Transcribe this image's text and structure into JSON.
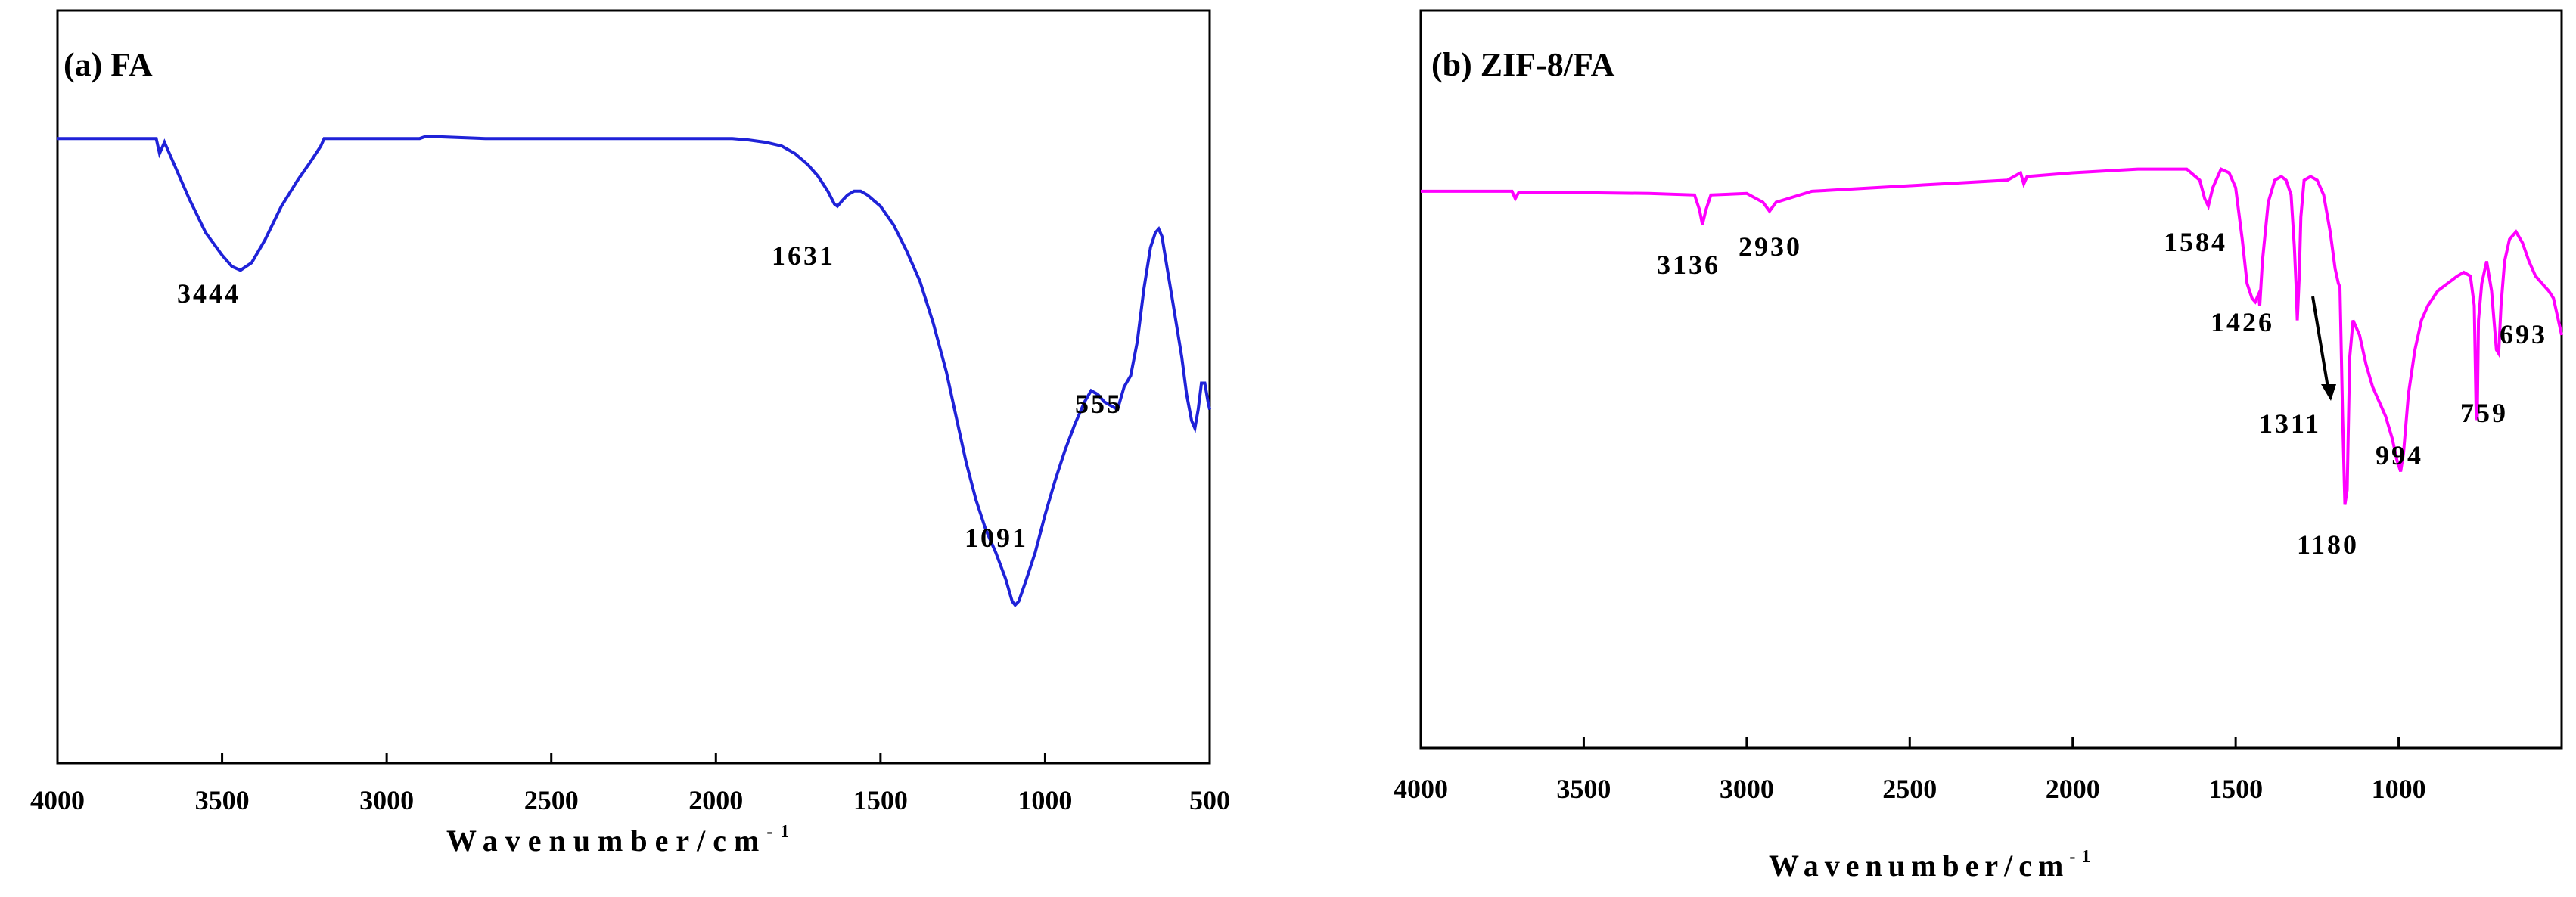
{
  "chart_data": [
    {
      "type": "line",
      "title": "(a) FA",
      "xlabel": "Wavenumber/cm",
      "xlabel_sup": "-1",
      "xlim": [
        4000,
        500
      ],
      "ylim": [
        0,
        100
      ],
      "xticks": [
        4000,
        3500,
        3000,
        2500,
        2000,
        1500,
        1000,
        500
      ],
      "grid": false,
      "color": "#1f22d8",
      "series": [
        {
          "x": [
            4000,
            3720,
            3700,
            3690,
            3675,
            3650,
            3600,
            3550,
            3500,
            3470,
            3444,
            3410,
            3370,
            3320,
            3270,
            3230,
            3200,
            3190,
            3100,
            2900,
            2880,
            2700,
            2500,
            2300,
            2100,
            1950,
            1900,
            1850,
            1800,
            1760,
            1720,
            1690,
            1660,
            1640,
            1631,
            1615,
            1600,
            1580,
            1560,
            1540,
            1500,
            1460,
            1420,
            1380,
            1340,
            1300,
            1270,
            1240,
            1210,
            1180,
            1150,
            1120,
            1100,
            1091,
            1080,
            1060,
            1030,
            1000,
            970,
            940,
            910,
            880,
            860,
            840,
            820,
            800,
            780,
            760,
            740,
            720,
            700,
            680,
            665,
            655,
            645,
            630,
            615,
            600,
            585,
            570,
            555,
            545,
            535,
            525,
            515,
            505,
            500
          ],
          "y": [
            83,
            83,
            83,
            81,
            82.5,
            80,
            75,
            70.5,
            67.5,
            66,
            65.5,
            66.5,
            69.5,
            74,
            77.5,
            80,
            82,
            83,
            83,
            83,
            83.3,
            83,
            83,
            83,
            83,
            83,
            82.8,
            82.5,
            82,
            81,
            79.5,
            78,
            76,
            74.3,
            74,
            74.8,
            75.5,
            76,
            76,
            75.5,
            74,
            71.5,
            68,
            64,
            58.5,
            52,
            46,
            40,
            35,
            31,
            28,
            24.5,
            21.5,
            21,
            21.5,
            24,
            28,
            33,
            37.5,
            41.5,
            45,
            48,
            49.5,
            49,
            48,
            47.5,
            47,
            50,
            51.5,
            56,
            63,
            68.5,
            70.5,
            71,
            70,
            66,
            62,
            58,
            54,
            49,
            45.5,
            44.5,
            47,
            50.5,
            50.5,
            48,
            47
          ]
        }
      ],
      "annotations": [
        {
          "text": "3444",
          "x": 3444
        },
        {
          "text": "1631",
          "x": 1631
        },
        {
          "text": "1091",
          "x": 1091
        },
        {
          "text": "555",
          "x": 555
        }
      ]
    },
    {
      "type": "line",
      "title": "(b) ZIF-8/FA",
      "xlabel": "Wavenumber/cm",
      "xlabel_sup": "-1",
      "xlim": [
        4000,
        500
      ],
      "ylim": [
        0,
        100
      ],
      "xticks": [
        4000,
        3500,
        3000,
        2500,
        2000,
        1500,
        1000
      ],
      "grid": false,
      "color": "#ff00ff",
      "series": [
        {
          "x": [
            4000,
            3850,
            3720,
            3710,
            3700,
            3500,
            3300,
            3160,
            3145,
            3136,
            3125,
            3110,
            3000,
            2950,
            2930,
            2910,
            2800,
            2600,
            2400,
            2200,
            2160,
            2150,
            2140,
            2000,
            1800,
            1700,
            1650,
            1610,
            1595,
            1584,
            1570,
            1545,
            1520,
            1500,
            1480,
            1465,
            1450,
            1440,
            1430,
            1426,
            1418,
            1400,
            1380,
            1360,
            1345,
            1330,
            1320,
            1315,
            1311,
            1305,
            1300,
            1290,
            1270,
            1250,
            1230,
            1210,
            1195,
            1185,
            1180,
            1172,
            1165,
            1158,
            1150,
            1140,
            1120,
            1100,
            1080,
            1060,
            1040,
            1020,
            1005,
            994,
            985,
            970,
            950,
            930,
            910,
            880,
            850,
            820,
            800,
            780,
            768,
            762,
            759,
            755,
            745,
            730,
            715,
            700,
            693,
            686,
            675,
            660,
            640,
            620,
            600,
            580,
            560,
            540,
            525,
            510,
            500
          ],
          "y": [
            75.5,
            75.5,
            75.5,
            74.5,
            75.3,
            75.3,
            75.2,
            75,
            73,
            71,
            73,
            75,
            75.2,
            74,
            72.8,
            74,
            75.5,
            76,
            76.5,
            77,
            78,
            76.5,
            77.5,
            78,
            78.5,
            78.5,
            78.5,
            77,
            74.5,
            73.5,
            76,
            78.5,
            78,
            76,
            69,
            63,
            61,
            60.5,
            61.5,
            60,
            66,
            74,
            77,
            77.5,
            77,
            75,
            68,
            63,
            58,
            64,
            72,
            77,
            77.5,
            77,
            75,
            70,
            65,
            63,
            62.5,
            45,
            33,
            35,
            53,
            58,
            56,
            52,
            49,
            47,
            45,
            42,
            39,
            37.5,
            40,
            48,
            54,
            58,
            60,
            62,
            63,
            64,
            64.5,
            64,
            60,
            45,
            44.5,
            58,
            63,
            66,
            62,
            54,
            53.5,
            60,
            66,
            69,
            70,
            68.5,
            66,
            64,
            63,
            62,
            61,
            58,
            56
          ]
        }
      ],
      "annotations": [
        {
          "text": "3136",
          "x": 3136
        },
        {
          "text": "2930",
          "x": 2930
        },
        {
          "text": "1584",
          "x": 1584
        },
        {
          "text": "1426",
          "x": 1426
        },
        {
          "text": "1311",
          "x": 1311
        },
        {
          "text": "1180",
          "x": 1180
        },
        {
          "text": "994",
          "x": 994
        },
        {
          "text": "759",
          "x": 759
        },
        {
          "text": "693",
          "x": 693
        }
      ]
    }
  ]
}
